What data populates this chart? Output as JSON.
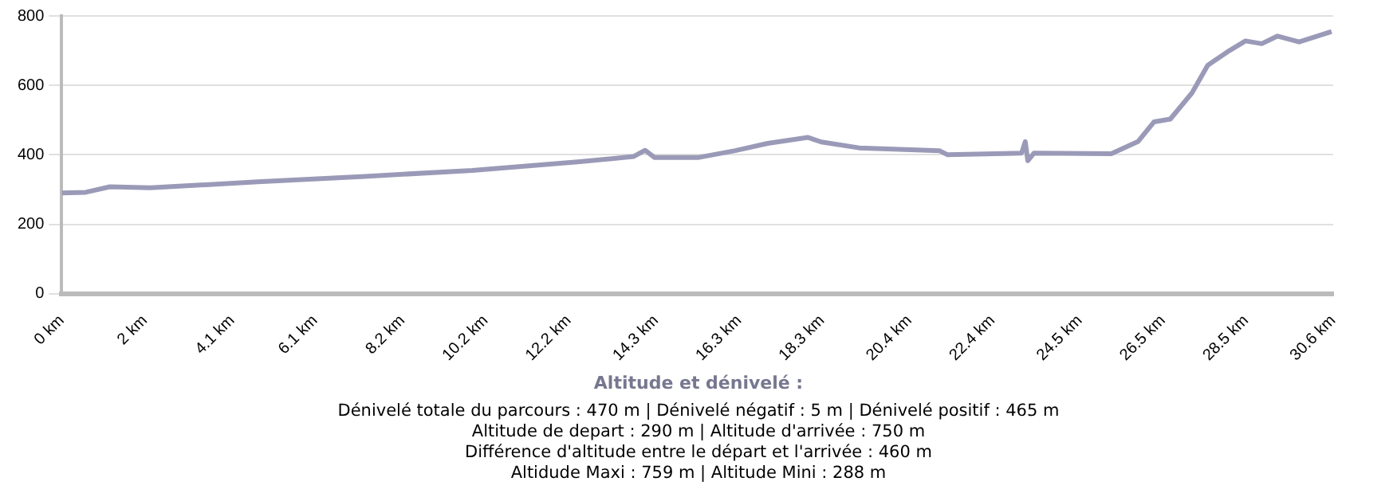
{
  "chart_data": {
    "type": "line",
    "x": [
      0,
      0.58,
      1.16,
      2.13,
      4.72,
      7.3,
      9.88,
      12.47,
      13.76,
      14.04,
      14.27,
      14.92,
      15.31,
      16.21,
      16.99,
      17.96,
      18.28,
      19.19,
      21.12,
      21.32,
      23.1,
      23.19,
      23.25,
      23.4,
      25.26,
      25.9,
      26.29,
      26.68,
      27.2,
      27.58,
      28.1,
      28.49,
      28.88,
      29.26,
      29.78,
      30.56
    ],
    "values": [
      290,
      292,
      308,
      305,
      322,
      338,
      355,
      380,
      395,
      413,
      392,
      392,
      392,
      412,
      433,
      450,
      437,
      420,
      412,
      400,
      405,
      438,
      383,
      405,
      403,
      438,
      495,
      503,
      578,
      658,
      700,
      728,
      720,
      742,
      725,
      755
    ],
    "color": "#9a9ab8",
    "xlim": [
      0,
      30.6
    ],
    "xticks": [
      {
        "value": 0,
        "label": "0 km"
      },
      {
        "value": 2,
        "label": "2 km"
      },
      {
        "value": 4.1,
        "label": "4.1 km"
      },
      {
        "value": 6.1,
        "label": "6.1 km"
      },
      {
        "value": 8.2,
        "label": "8.2 km"
      },
      {
        "value": 10.2,
        "label": "10.2 km"
      },
      {
        "value": 12.2,
        "label": "12.2 km"
      },
      {
        "value": 14.3,
        "label": "14.3 km"
      },
      {
        "value": 16.3,
        "label": "16.3 km"
      },
      {
        "value": 18.3,
        "label": "18.3 km"
      },
      {
        "value": 20.4,
        "label": "20.4 km"
      },
      {
        "value": 22.4,
        "label": "22.4 km"
      },
      {
        "value": 24.5,
        "label": "24.5 km"
      },
      {
        "value": 26.5,
        "label": "26.5 km"
      },
      {
        "value": 28.5,
        "label": "28.5 km"
      },
      {
        "value": 30.6,
        "label": "30.6 km"
      }
    ],
    "ylim": [
      0,
      800
    ],
    "yticks": [
      0,
      200,
      400,
      600,
      800
    ],
    "grid": "y",
    "marker": "none",
    "annotations": [
      "Altitude et dénivelé :",
      "Dénivelé totale du parcours : 470  m | Dénivelé négatif : 5 m | Dénivelé positif : 465  m",
      "Altitude de depart : 290  m | Altitude d'arrivée : 750  m",
      "Différence d'altitude entre le départ et l'arrivée : 460  m",
      "Altidude Maxi : 759  m | Altitude Mini : 288  m"
    ]
  }
}
